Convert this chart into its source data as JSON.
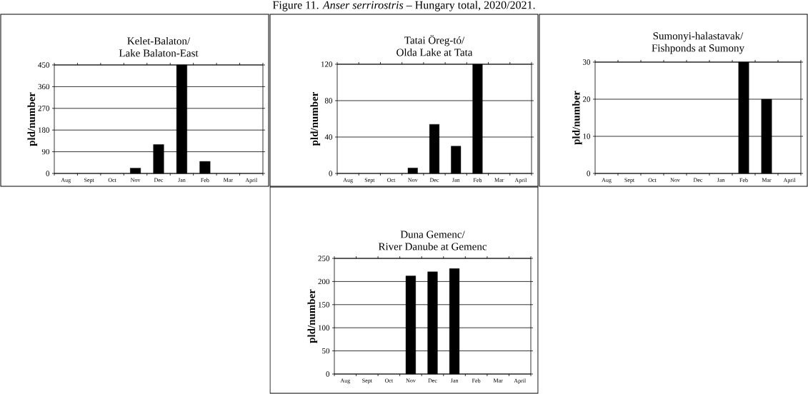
{
  "chart_data": [
    {
      "type": "other",
      "title": "Figure 11. *Anser serrirostris* – Hungary total, 2020/2021."
    },
    {
      "type": "bar",
      "title": "Kelet-Balaton/\nLake Balaton-East",
      "ylabel": "pld/number",
      "categories": [
        "Aug",
        "Sept",
        "Oct",
        "Nov",
        "Dec",
        "Jan",
        "Feb",
        "Mar",
        "April"
      ],
      "values": [
        null,
        null,
        null,
        22,
        120,
        450,
        50,
        null,
        null
      ],
      "color": "#000000",
      "ylim": [
        0,
        450
      ],
      "yticks": [
        0,
        90,
        180,
        270,
        360,
        450
      ],
      "grid": "y"
    },
    {
      "type": "bar",
      "title": "Tatai Öreg-tó/\nOlda Lake at Tata",
      "ylabel": "pld/number",
      "categories": [
        "Aug",
        "Sept",
        "Oct",
        "Nov",
        "Dec",
        "Jan",
        "Feb",
        "Mar",
        "April"
      ],
      "values": [
        null,
        null,
        null,
        6,
        54,
        30,
        120,
        null,
        null
      ],
      "color": "#000000",
      "ylim": [
        0,
        120
      ],
      "yticks": [
        0,
        40,
        80,
        120
      ],
      "grid": "y"
    },
    {
      "type": "bar",
      "title": "Sumonyi-halastavak/\nFishponds at Sumony",
      "ylabel": "pld/number",
      "categories": [
        "Aug",
        "Sept",
        "Oct",
        "Nov",
        "Dec",
        "Jan",
        "Feb",
        "Mar",
        "April"
      ],
      "values": [
        null,
        null,
        null,
        null,
        null,
        null,
        30,
        20,
        null
      ],
      "color": "#000000",
      "ylim": [
        0,
        30
      ],
      "yticks": [
        0,
        10,
        20,
        30
      ],
      "grid": "y"
    },
    {
      "type": "bar",
      "title": "Duna Gemenc/\nRiver Danube at Gemenc",
      "ylabel": "pld/number",
      "categories": [
        "Aug",
        "Sept",
        "Oct",
        "Nov",
        "Dec",
        "Jan",
        "Feb",
        "Mar",
        "April"
      ],
      "values": [
        null,
        null,
        null,
        212,
        221,
        228,
        null,
        null,
        null
      ],
      "color": "#000000",
      "ylim": [
        0,
        250
      ],
      "yticks": [
        0,
        50,
        100,
        150,
        200,
        250
      ],
      "grid": "y"
    }
  ]
}
